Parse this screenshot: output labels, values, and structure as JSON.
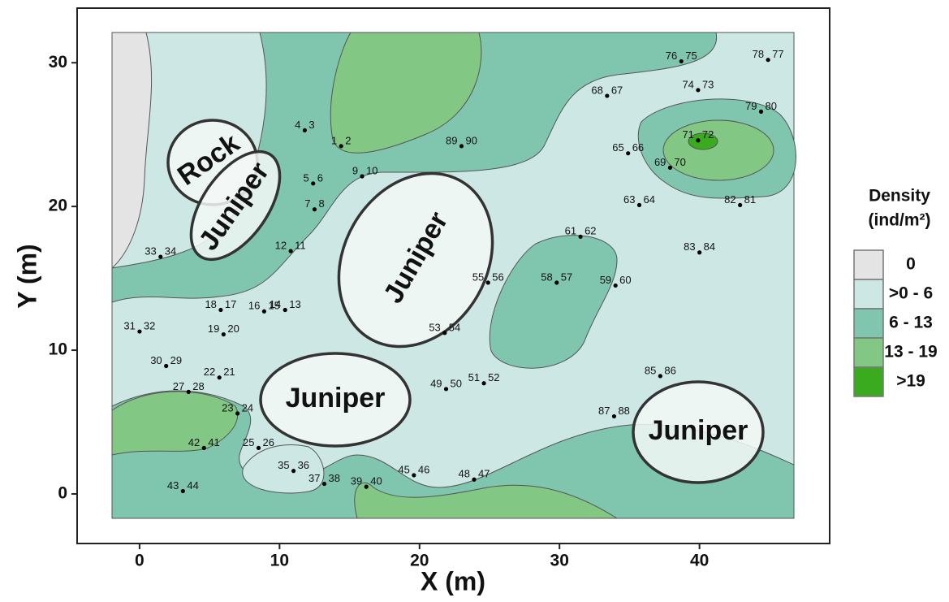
{
  "chart_data": {
    "type": "contour",
    "xlabel": "X (m)",
    "ylabel": "Y (m)",
    "xlim": [
      -4.46,
      49.3
    ],
    "ylim": [
      -3.45,
      33.8
    ],
    "xticks": [
      0,
      10,
      20,
      30,
      40
    ],
    "yticks": [
      0,
      10,
      20,
      30
    ],
    "annotations": [
      "Rock",
      "Juniper",
      "Juniper",
      "Juniper",
      "Juniper"
    ],
    "legend": {
      "title": [
        "Density",
        "(ind/m²)"
      ],
      "items": [
        {
          "label": "0",
          "color": "#e4e4e4"
        },
        {
          "label": ">0 - 6",
          "color": "#cde8e4"
        },
        {
          "label": "6 - 13",
          "color": "#80c6af"
        },
        {
          "label": "13 - 19",
          "color": "#82c784"
        },
        {
          "label": ">19",
          "color": "#3aaa1f"
        }
      ]
    },
    "points": [
      {
        "labels": [
          "1",
          "2"
        ],
        "x": 14.4,
        "y": 24.2
      },
      {
        "labels": [
          "4",
          "3"
        ],
        "x": 11.8,
        "y": 25.3
      },
      {
        "labels": [
          "5",
          "6"
        ],
        "x": 12.4,
        "y": 21.6
      },
      {
        "labels": [
          "7",
          "8"
        ],
        "x": 12.5,
        "y": 19.8
      },
      {
        "labels": [
          "9",
          "10"
        ],
        "x": 15.9,
        "y": 22.1
      },
      {
        "labels": [
          "12",
          "11"
        ],
        "x": 10.8,
        "y": 16.9
      },
      {
        "labels": [
          "14",
          "13"
        ],
        "x": 10.4,
        "y": 12.8
      },
      {
        "labels": [
          "16",
          "15"
        ],
        "x": 8.9,
        "y": 12.7
      },
      {
        "labels": [
          "18",
          "17"
        ],
        "x": 5.8,
        "y": 12.8
      },
      {
        "labels": [
          "19",
          "20"
        ],
        "x": 6.0,
        "y": 11.1
      },
      {
        "labels": [
          "22",
          "21"
        ],
        "x": 5.7,
        "y": 8.1
      },
      {
        "labels": [
          "23",
          "24"
        ],
        "x": 7.0,
        "y": 5.6
      },
      {
        "labels": [
          "25",
          "26"
        ],
        "x": 8.5,
        "y": 3.2
      },
      {
        "labels": [
          "27",
          "28"
        ],
        "x": 3.5,
        "y": 7.1
      },
      {
        "labels": [
          "30",
          "29"
        ],
        "x": 1.9,
        "y": 8.9
      },
      {
        "labels": [
          "31",
          "32"
        ],
        "x": 0.0,
        "y": 11.3
      },
      {
        "labels": [
          "33",
          "34"
        ],
        "x": 1.5,
        "y": 16.5
      },
      {
        "labels": [
          "35",
          "36"
        ],
        "x": 11.0,
        "y": 1.6
      },
      {
        "labels": [
          "37",
          "38"
        ],
        "x": 13.2,
        "y": 0.7
      },
      {
        "labels": [
          "39",
          "40"
        ],
        "x": 16.2,
        "y": 0.5
      },
      {
        "labels": [
          "42",
          "41"
        ],
        "x": 4.6,
        "y": 3.2
      },
      {
        "labels": [
          "43",
          "44"
        ],
        "x": 3.1,
        "y": 0.2
      },
      {
        "labels": [
          "45",
          "46"
        ],
        "x": 19.6,
        "y": 1.3
      },
      {
        "labels": [
          "48",
          "47"
        ],
        "x": 23.9,
        "y": 1.0
      },
      {
        "labels": [
          "49",
          "50"
        ],
        "x": 21.9,
        "y": 7.3
      },
      {
        "labels": [
          "51",
          "52"
        ],
        "x": 24.6,
        "y": 7.7
      },
      {
        "labels": [
          "53",
          "54"
        ],
        "x": 21.8,
        "y": 11.2
      },
      {
        "labels": [
          "55",
          "56"
        ],
        "x": 24.9,
        "y": 14.7
      },
      {
        "labels": [
          "58",
          "57"
        ],
        "x": 29.8,
        "y": 14.7
      },
      {
        "labels": [
          "59",
          "60"
        ],
        "x": 34.0,
        "y": 14.5
      },
      {
        "labels": [
          "61",
          "62"
        ],
        "x": 31.5,
        "y": 17.9
      },
      {
        "labels": [
          "63",
          "64"
        ],
        "x": 35.7,
        "y": 20.1
      },
      {
        "labels": [
          "65",
          "66"
        ],
        "x": 34.9,
        "y": 23.7
      },
      {
        "labels": [
          "68",
          "67"
        ],
        "x": 33.4,
        "y": 27.7
      },
      {
        "labels": [
          "69",
          "70"
        ],
        "x": 37.9,
        "y": 22.7
      },
      {
        "labels": [
          "71",
          "72"
        ],
        "x": 39.9,
        "y": 24.6
      },
      {
        "labels": [
          "74",
          "73"
        ],
        "x": 39.9,
        "y": 28.1
      },
      {
        "labels": [
          "76",
          "75"
        ],
        "x": 38.7,
        "y": 30.1
      },
      {
        "labels": [
          "78",
          "77"
        ],
        "x": 44.9,
        "y": 30.2
      },
      {
        "labels": [
          "79",
          "80"
        ],
        "x": 44.4,
        "y": 26.6
      },
      {
        "labels": [
          "82",
          "81"
        ],
        "x": 42.9,
        "y": 20.1
      },
      {
        "labels": [
          "83",
          "84"
        ],
        "x": 40.0,
        "y": 16.8
      },
      {
        "labels": [
          "85",
          "86"
        ],
        "x": 37.2,
        "y": 8.2
      },
      {
        "labels": [
          "87",
          "88"
        ],
        "x": 33.9,
        "y": 5.4
      },
      {
        "labels": [
          "89",
          "90"
        ],
        "x": 23.0,
        "y": 24.2
      }
    ]
  }
}
